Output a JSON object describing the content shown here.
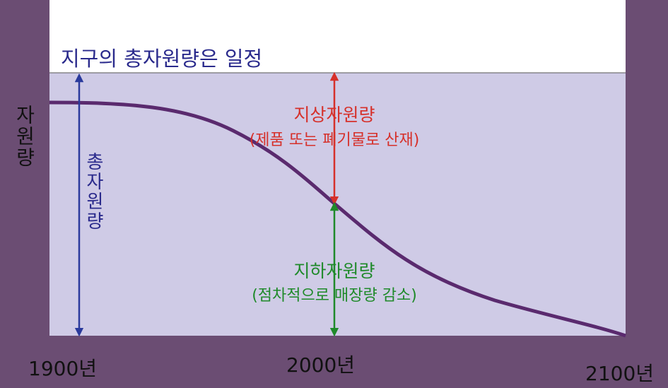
{
  "title": "지구의 총자원량은 일정",
  "y_axis_label": "자원량",
  "total_label": "총자원량",
  "above_ground": {
    "label": "지상자원량",
    "note": "(제품 또는 폐기물로 산재)"
  },
  "underground": {
    "label": "지하자원량",
    "note": "(점차적으로 매장량 감소)"
  },
  "x_labels": [
    "1900년",
    "2000년",
    "2100년"
  ]
}
